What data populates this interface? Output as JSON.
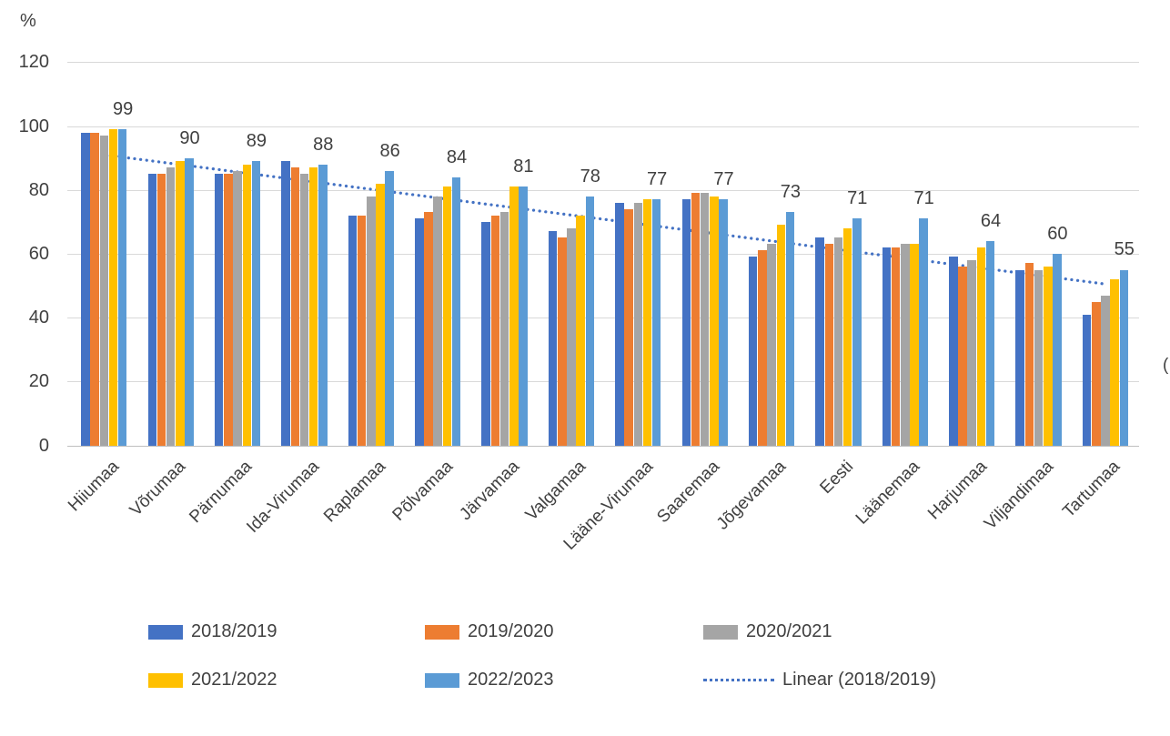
{
  "chart_data": {
    "type": "bar",
    "y_axis": {
      "label": "%",
      "ticks": [
        120,
        100,
        80,
        60,
        40,
        20,
        0
      ],
      "min": 0,
      "max": 120,
      "grid": true
    },
    "categories": [
      "Hiiumaa",
      "Võrumaa",
      "Pärnumaa",
      "Ida-Virumaa",
      "Raplamaa",
      "Põlvamaa",
      "Järvamaa",
      "Valgamaa",
      "Lääne-Virumaa",
      "Saaremaa",
      "Jõgevamaa",
      "Eesti",
      "Läänemaa",
      "Harjumaa",
      "Viljandimaa",
      "Tartumaa"
    ],
    "series": [
      {
        "name": "2018/2019",
        "color": "#4472C4",
        "values": [
          98,
          85,
          85,
          89,
          72,
          71,
          70,
          67,
          76,
          77,
          59,
          65,
          62,
          59,
          55,
          41
        ]
      },
      {
        "name": "2019/2020",
        "color": "#ED7D31",
        "values": [
          98,
          85,
          85,
          87,
          72,
          73,
          72,
          65,
          74,
          79,
          61,
          63,
          62,
          56,
          57,
          45
        ]
      },
      {
        "name": "2020/2021",
        "color": "#A5A5A5",
        "values": [
          97,
          87,
          86,
          85,
          78,
          78,
          73,
          68,
          76,
          79,
          63,
          65,
          63,
          58,
          55,
          47
        ]
      },
      {
        "name": "2021/2022",
        "color": "#FFC000",
        "values": [
          99,
          89,
          88,
          87,
          82,
          81,
          81,
          72,
          77,
          78,
          69,
          68,
          63,
          62,
          56,
          52
        ]
      },
      {
        "name": "2022/2023",
        "color": "#5B9BD5",
        "values": [
          99,
          90,
          89,
          88,
          86,
          84,
          81,
          78,
          77,
          77,
          73,
          71,
          71,
          64,
          60,
          55
        ]
      }
    ],
    "data_labels": {
      "on_series": "2022/2023",
      "values": [
        99,
        90,
        89,
        88,
        86,
        84,
        81,
        78,
        77,
        77,
        73,
        71,
        71,
        64,
        60,
        55
      ]
    },
    "trendline": {
      "label": "Linear (2018/2019)",
      "of_series": "2018/2019",
      "color": "#4472C4",
      "style": "dotted",
      "start_value": 91,
      "end_value": 50.5
    },
    "legend_position": "bottom",
    "clipped_right_edge_text": "("
  },
  "colors": {
    "gridline": "#D9D9D9",
    "axis_line": "#BFBFBF",
    "text": "#404040"
  }
}
